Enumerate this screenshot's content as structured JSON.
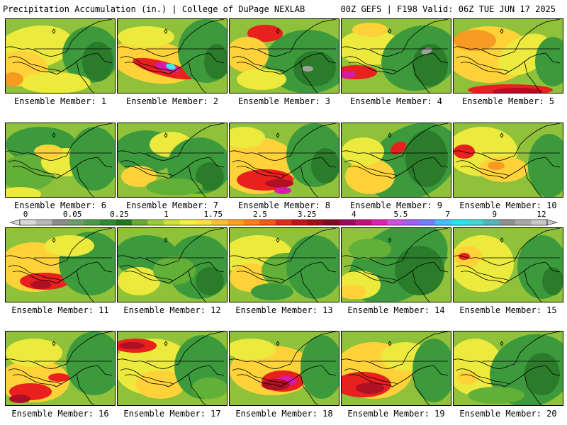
{
  "header": {
    "left": "Precipitation Accumulation (in.) | College of DuPage NEXLAB",
    "right": "00Z GEFS | F198 Valid: 06Z TUE JUN 17 2025"
  },
  "legend": {
    "tick_labels": [
      "0",
      "0.05",
      "0.25",
      "1",
      "1.75",
      "2.5",
      "3.25",
      "4",
      "5.5",
      "7",
      "9",
      "12"
    ],
    "colors": [
      "#d8d8d8",
      "#b8b8b8",
      "#8c8c8c",
      "#6e9e6e",
      "#4a9a4a",
      "#2e8b2e",
      "#1f7a1f",
      "#6aa832",
      "#9acb3c",
      "#cfe23a",
      "#f2f23a",
      "#ffe040",
      "#ffc030",
      "#ffa020",
      "#ff7f1a",
      "#f25a1a",
      "#e52a1a",
      "#c8101a",
      "#a0101a",
      "#800a20",
      "#9a0a5a",
      "#c0107a",
      "#e020b0",
      "#d050e0",
      "#a060f0",
      "#7080ff",
      "#40c0ff",
      "#20e8f0",
      "#40d8d0",
      "#50b8b8",
      "#909090",
      "#a8a8a8",
      "#c8c8c8"
    ]
  },
  "map_palette": {
    "base": "#8fc23a",
    "yellow": "#ecea3c",
    "orange": "#ffd23a",
    "darkorange": "#f79a22",
    "red": "#e8201e",
    "darkred": "#b01024",
    "green": "#3d9a3c",
    "darkgreen": "#2a7c2a",
    "lightgreen": "#62b038",
    "magenta": "#d81aa8",
    "cyan": "#40e8f0",
    "gray": "#a0a0a0"
  },
  "members": [
    {
      "caption": "Ensemble Member: 1"
    },
    {
      "caption": "Ensemble Member: 2"
    },
    {
      "caption": "Ensemble Member: 3"
    },
    {
      "caption": "Ensemble Member: 4"
    },
    {
      "caption": "Ensemble Member: 5"
    },
    {
      "caption": "Ensemble Member: 6"
    },
    {
      "caption": "Ensemble Member: 7"
    },
    {
      "caption": "Ensemble Member: 8"
    },
    {
      "caption": "Ensemble Member: 9"
    },
    {
      "caption": "Ensemble Member: 10"
    },
    {
      "caption": "Ensemble Member: 11"
    },
    {
      "caption": "Ensemble Member: 12"
    },
    {
      "caption": "Ensemble Member: 13"
    },
    {
      "caption": "Ensemble Member: 14"
    },
    {
      "caption": "Ensemble Member: 15"
    },
    {
      "caption": "Ensemble Member: 16"
    },
    {
      "caption": "Ensemble Member: 17"
    },
    {
      "caption": "Ensemble Member: 18"
    },
    {
      "caption": "Ensemble Member: 19"
    },
    {
      "caption": "Ensemble Member: 20"
    }
  ]
}
